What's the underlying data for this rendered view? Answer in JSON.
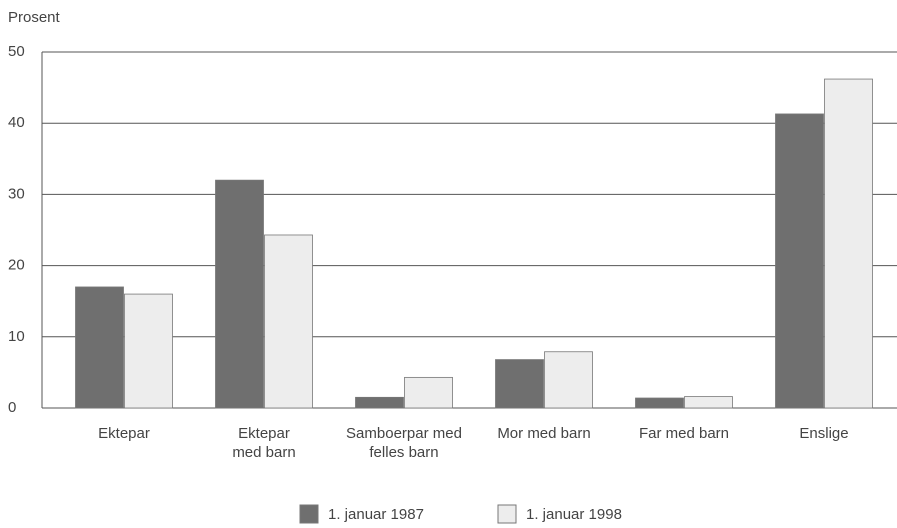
{
  "chart_data": {
    "type": "bar",
    "y_label": "Prosent",
    "categories": [
      "Ektepar",
      "Ektepar\nmed barn",
      "Samboerpar med\nfelles barn",
      "Mor med barn",
      "Far med barn",
      "Enslige"
    ],
    "series": [
      {
        "name": "1. januar 1987",
        "color": "#6f6f6f",
        "values": [
          17,
          32,
          1.5,
          6.8,
          1.4,
          41.3
        ]
      },
      {
        "name": "1. januar 1998",
        "color": "#ededed",
        "values": [
          16,
          24.3,
          4.3,
          7.9,
          1.6,
          46.2
        ]
      }
    ],
    "ylim": [
      0,
      50
    ],
    "yticks": [
      0,
      10,
      20,
      30,
      40,
      50
    ],
    "grid": true
  }
}
